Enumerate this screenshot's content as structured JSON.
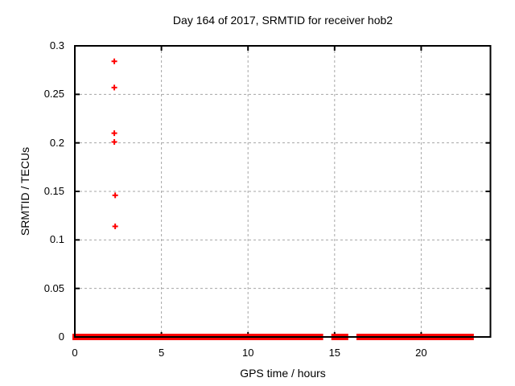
{
  "window": {
    "title": "Day 164 of 2017, SRMTID for receiver hob2"
  },
  "colors": {
    "series": "#ff0000",
    "grid": "#a6a6a6",
    "frame": "#000000",
    "background": "#ffffff",
    "text": "#000000"
  },
  "chart_data": {
    "type": "scatter",
    "title": "Day 164 of 2017, SRMTID for receiver hob2",
    "xlabel": "GPS time / hours",
    "ylabel": "SRMTID / TECUs",
    "xlim": [
      0,
      24
    ],
    "ylim": [
      0,
      0.3
    ],
    "grid": "dashed gray at major ticks",
    "legend": "none",
    "marker": "plus",
    "xticks": [
      {
        "v": 0,
        "label": "0"
      },
      {
        "v": 5,
        "label": "5"
      },
      {
        "v": 10,
        "label": "10"
      },
      {
        "v": 15,
        "label": "15"
      },
      {
        "v": 20,
        "label": "20"
      }
    ],
    "yticks": [
      {
        "v": 0,
        "label": "0"
      },
      {
        "v": 0.05,
        "label": "0.05"
      },
      {
        "v": 0.1,
        "label": "0.1"
      },
      {
        "v": 0.15,
        "label": "0.15"
      },
      {
        "v": 0.2,
        "label": "0.2"
      },
      {
        "v": 0.25,
        "label": "0.25"
      },
      {
        "v": 0.3,
        "label": "0.3"
      }
    ],
    "outlier_points": [
      [
        2.28,
        0.284
      ],
      [
        2.28,
        0.257
      ],
      [
        2.28,
        0.21
      ],
      [
        2.28,
        0.201
      ],
      [
        2.33,
        0.146
      ],
      [
        2.33,
        0.114
      ]
    ],
    "zero_line_value": 0,
    "zero_line_segments": [
      [
        0,
        14.2
      ],
      [
        14.95,
        15.3
      ],
      [
        15.4,
        15.65
      ],
      [
        16.4,
        16.7
      ],
      [
        16.85,
        22.9
      ]
    ]
  }
}
